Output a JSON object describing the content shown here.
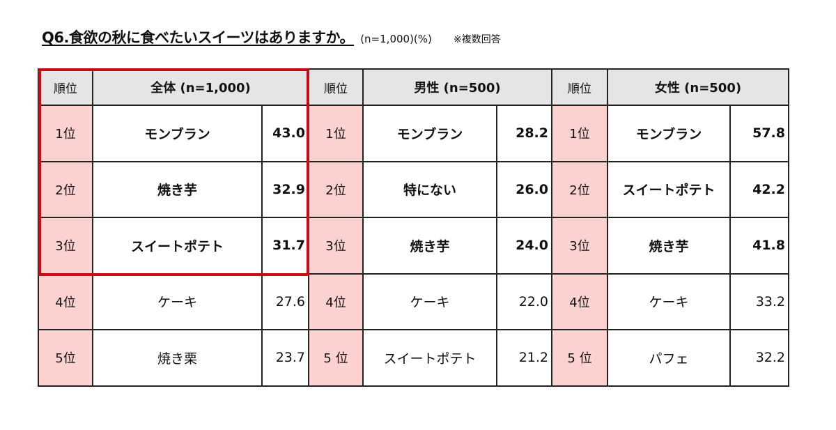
{
  "title": "Q6.食欲の秋に食べたいスイーツはありますか。",
  "sample_note": "(n=1,000)(%)",
  "answer_note": "※複数回答",
  "chart_data": {
    "type": "table",
    "groups": [
      {
        "rank_header": "順位",
        "header": "全体 (n=1,000)",
        "rows": [
          {
            "rank": "1位",
            "item": "モンブラン",
            "value": "43.0"
          },
          {
            "rank": "2位",
            "item": "焼き芋",
            "value": "32.9"
          },
          {
            "rank": "3位",
            "item": "スイートポテト",
            "value": "31.7"
          },
          {
            "rank": "4位",
            "item": "ケーキ",
            "value": "27.6"
          },
          {
            "rank": "5位",
            "item": "焼き栗",
            "value": "23.7"
          }
        ]
      },
      {
        "rank_header": "順位",
        "header": "男性 (n=500)",
        "rows": [
          {
            "rank": "1位",
            "item": "モンブラン",
            "value": "28.2"
          },
          {
            "rank": "2位",
            "item": "特にない",
            "value": "26.0"
          },
          {
            "rank": "3位",
            "item": "焼き芋",
            "value": "24.0"
          },
          {
            "rank": "4位",
            "item": "ケーキ",
            "value": "22.0"
          },
          {
            "rank": "5 位",
            "item": "スイートポテト",
            "value": "21.2"
          }
        ]
      },
      {
        "rank_header": "順位",
        "header": "女性 (n=500)",
        "rows": [
          {
            "rank": "1位",
            "item": "モンブラン",
            "value": "57.8"
          },
          {
            "rank": "2位",
            "item": "スイートポテト",
            "value": "42.2"
          },
          {
            "rank": "3位",
            "item": "焼き芋",
            "value": "41.8"
          },
          {
            "rank": "4位",
            "item": "ケーキ",
            "value": "33.2"
          },
          {
            "rank": "5 位",
            "item": "パフェ",
            "value": "32.2"
          }
        ]
      }
    ],
    "highlight_color": "#cc0a14",
    "rank_cell_color": "#fcd2d0",
    "header_color": "#e5e5e5"
  }
}
